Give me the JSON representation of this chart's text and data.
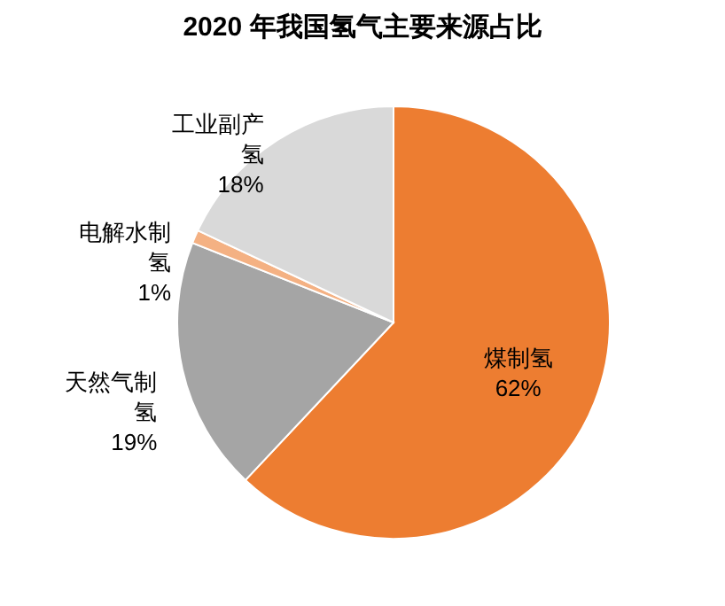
{
  "chart_data": {
    "type": "pie",
    "title": "2020 年我国氢气主要来源占比",
    "categories": [
      "煤制氢",
      "天然气制氢",
      "电解水制氢",
      "工业副产氢"
    ],
    "values": [
      62,
      19,
      1,
      18
    ],
    "colors": [
      "#ed7d31",
      "#a5a5a5",
      "#f4b183",
      "#d9d9d9"
    ],
    "value_labels": [
      "62%",
      "19%",
      "1%",
      "18%"
    ],
    "legend": false
  }
}
